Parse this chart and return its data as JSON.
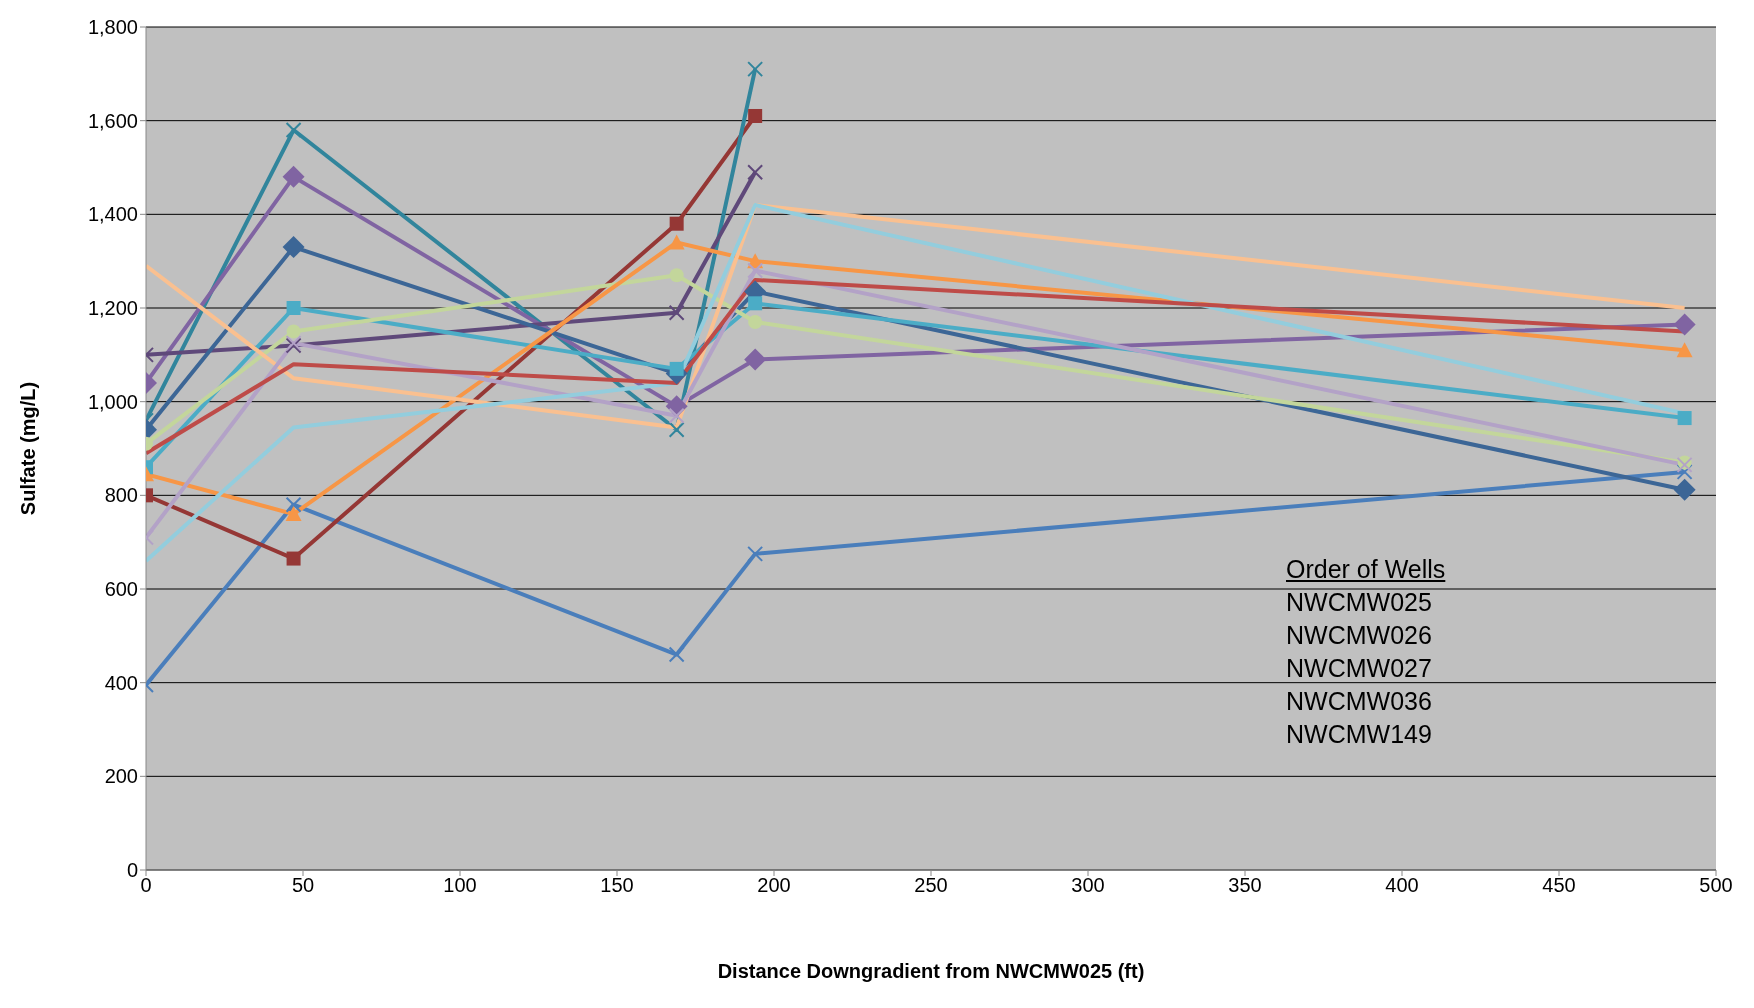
{
  "chart_data": {
    "type": "line",
    "xlabel": "Distance Downgradient from NWCMW025 (ft)",
    "ylabel": "Sulfate (mg/L)",
    "x": [
      0,
      47,
      169,
      194,
      490
    ],
    "xlim": [
      0,
      500
    ],
    "xticks": [
      0,
      50,
      100,
      150,
      200,
      250,
      300,
      350,
      400,
      450,
      500
    ],
    "ylim": [
      0,
      1800
    ],
    "yticks": [
      {
        "value": 0,
        "label": "0"
      },
      {
        "value": 200,
        "label": "200"
      },
      {
        "value": 400,
        "label": "400"
      },
      {
        "value": 600,
        "label": "600"
      },
      {
        "value": 800,
        "label": "800"
      },
      {
        "value": 1000,
        "label": "1,000"
      },
      {
        "value": 1200,
        "label": "1,200"
      },
      {
        "value": 1400,
        "label": "1,400"
      },
      {
        "value": 1600,
        "label": "1,600"
      },
      {
        "value": 1800,
        "label": "1,800"
      }
    ],
    "grid": "y",
    "legend": false,
    "series": [
      {
        "color": "#4a7ebb",
        "marker": "cross",
        "values": [
          395,
          780,
          460,
          675,
          850
        ]
      },
      {
        "color": "#953735",
        "marker": "square",
        "values": [
          800,
          665,
          1380,
          1610,
          null
        ]
      },
      {
        "color": "#31859c",
        "marker": "cross",
        "values": [
          960,
          1580,
          940,
          1710,
          null
        ]
      },
      {
        "color": "#8064a2",
        "marker": "diamond",
        "values": [
          1040,
          1480,
          990,
          1090,
          1165
        ]
      },
      {
        "color": "#5f497a",
        "marker": "cross",
        "values": [
          1100,
          1120,
          1190,
          1490,
          null
        ]
      },
      {
        "color": "#3c6696",
        "marker": "diamond",
        "values": [
          940,
          1330,
          1060,
          1235,
          812
        ]
      },
      {
        "color": "#4bacc6",
        "marker": "square",
        "values": [
          860,
          1200,
          1070,
          1210,
          965
        ]
      },
      {
        "color": "#c3d69b",
        "marker": "circle",
        "values": [
          910,
          1150,
          1270,
          1170,
          870
        ]
      },
      {
        "color": "#f79646",
        "marker": "triangle",
        "values": [
          845,
          760,
          1340,
          1300,
          1110
        ]
      },
      {
        "color": "#fac090",
        "marker": "none",
        "values": [
          1290,
          1050,
          945,
          1420,
          1200
        ]
      },
      {
        "color": "#b3a2c7",
        "marker": "cross",
        "values": [
          710,
          1125,
          970,
          1280,
          865
        ]
      },
      {
        "color": "#93cddd",
        "marker": "none",
        "values": [
          660,
          945,
          1040,
          1420,
          975
        ]
      },
      {
        "color": "#be4b48",
        "marker": "none",
        "values": [
          890,
          1080,
          1040,
          1260,
          1150
        ]
      }
    ],
    "annotations": [
      "Order of Wells",
      "NWCMW025",
      "NWCMW026",
      "NWCMW027",
      "NWCMW036",
      "NWCMW149"
    ]
  }
}
